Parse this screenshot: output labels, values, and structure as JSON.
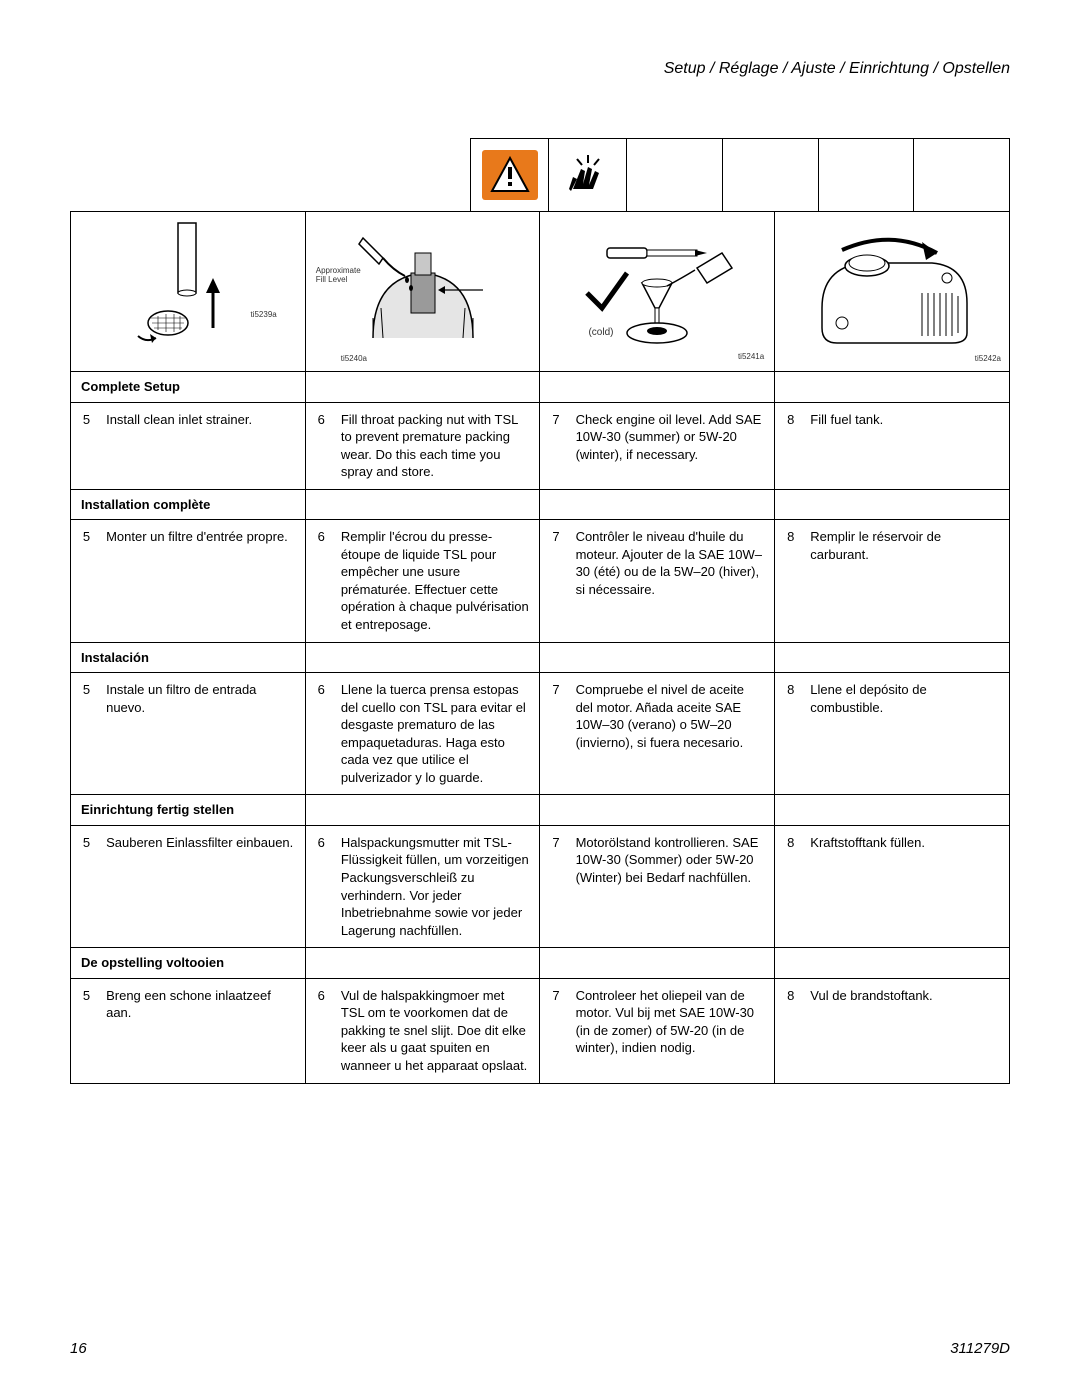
{
  "header": {
    "title": "Setup / Réglage / Ajuste / Einrichtung / Opstellen"
  },
  "footer": {
    "page": "16",
    "docnum": "311279D"
  },
  "illus": {
    "fill_level": "Approximate\nFill Level",
    "cold": "(cold)",
    "ref1": "ti5239a",
    "ref2": "ti5240a",
    "ref3": "ti5241a",
    "ref4": "ti5242a"
  },
  "sections": [
    {
      "header": "Complete Setup",
      "steps": [
        {
          "n": "5",
          "text": "Install clean inlet strainer."
        },
        {
          "n": "6",
          "text": "Fill throat packing nut with TSL to prevent premature packing wear. Do this each time you spray and store."
        },
        {
          "n": "7",
          "text": "Check engine oil level. Add SAE 10W-30 (summer) or 5W-20 (winter), if necessary."
        },
        {
          "n": "8",
          "text": "Fill fuel tank."
        }
      ]
    },
    {
      "header": "Installation complète",
      "steps": [
        {
          "n": "5",
          "text": "Monter un filtre d'entrée propre."
        },
        {
          "n": "6",
          "text": "Remplir l'écrou du presse-étoupe de liquide TSL pour empêcher une usure prématurée. Effectuer cette opération à chaque pulvérisation et entreposage."
        },
        {
          "n": "7",
          "text": "Contrôler le niveau d'huile du moteur. Ajouter de la SAE 10W–30 (été) ou de la 5W–20 (hiver), si nécessaire."
        },
        {
          "n": "8",
          "text": "Remplir le réservoir de carburant."
        }
      ]
    },
    {
      "header": "Instalación",
      "steps": [
        {
          "n": "5",
          "text": "Instale un filtro de entrada nuevo."
        },
        {
          "n": "6",
          "text": "Llene la tuerca prensa estopas del cuello con TSL para evitar el desgaste prematuro de las empaquetaduras. Haga esto cada vez que utilice el pulverizador y lo guarde."
        },
        {
          "n": "7",
          "text": "Compruebe el nivel de aceite del motor. Añada aceite SAE 10W–30 (verano) o 5W–20 (invierno), si fuera necesario."
        },
        {
          "n": "8",
          "text": "Llene el depósito de combustible."
        }
      ]
    },
    {
      "header": "Einrichtung fertig stellen",
      "steps": [
        {
          "n": "5",
          "text": "Sauberen Einlassfilter einbauen."
        },
        {
          "n": "6",
          "text": "Halspackungsmutter mit TSL-Flüssigkeit füllen, um vorzeitigen Packungsverschleiß zu verhindern. Vor jeder Inbetriebnahme sowie vor jeder Lagerung nachfüllen."
        },
        {
          "n": "7",
          "text": "Motorölstand kontrollieren. SAE 10W-30 (Sommer) oder 5W-20 (Winter) bei Bedarf nachfüllen."
        },
        {
          "n": "8",
          "text": "Kraftstofftank füllen."
        }
      ]
    },
    {
      "header": "De opstelling voltooien",
      "steps": [
        {
          "n": "5",
          "text": "Breng een schone inlaatzeef aan."
        },
        {
          "n": "6",
          "text": "Vul de halspakkingmoer met TSL om te voorkomen dat de pakking te snel slijt. Doe dit elke keer als u gaat spuiten en wanneer u het apparaat opslaat."
        },
        {
          "n": "7",
          "text": "Controleer het oliepeil van de motor. Vul bij met SAE 10W-30 (in de zomer) of 5W-20 (in de winter), indien nodig."
        },
        {
          "n": "8",
          "text": "Vul de brandstoftank."
        }
      ]
    }
  ],
  "colors": {
    "warn_bg": "#e8791b",
    "border": "#000000",
    "text": "#000000"
  }
}
